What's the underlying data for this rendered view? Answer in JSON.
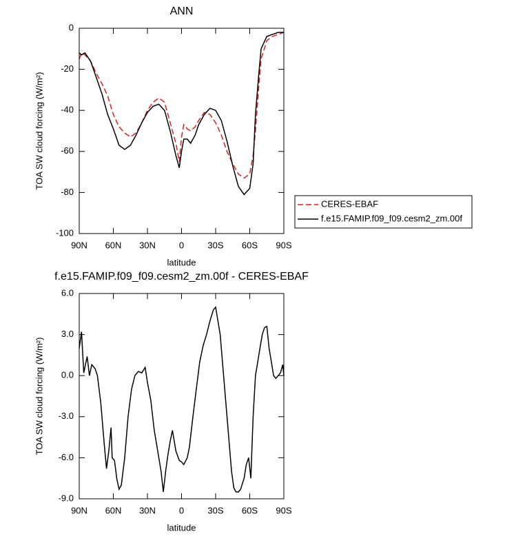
{
  "chart_data": [
    {
      "type": "line",
      "title": "ANN",
      "xlabel": "latitude",
      "ylabel": "TOA SW cloud forcing (W/m²)",
      "x": [
        90,
        88,
        85,
        80,
        75,
        70,
        65,
        60,
        55,
        50,
        45,
        40,
        35,
        30,
        25,
        20,
        15,
        10,
        5,
        2,
        0,
        -2,
        -5,
        -8,
        -12,
        -15,
        -20,
        -25,
        -30,
        -35,
        -40,
        -45,
        -50,
        -55,
        -60,
        -63,
        -65,
        -68,
        -70,
        -75,
        -80,
        -85,
        -90
      ],
      "series": [
        {
          "name": "CERES-EBAF",
          "color": "#e41a1c",
          "dash": true,
          "values": [
            -15,
            -12,
            -13,
            -16,
            -22,
            -27,
            -33,
            -42,
            -48,
            -51,
            -53,
            -51,
            -46,
            -40,
            -36,
            -34,
            -36,
            -46,
            -56,
            -65,
            -53,
            -47,
            -49,
            -50,
            -48,
            -45,
            -41,
            -42,
            -46,
            -52,
            -60,
            -66,
            -71,
            -73,
            -71,
            -62,
            -50,
            -28,
            -15,
            -6,
            -4,
            -3,
            -2
          ]
        },
        {
          "name": "f.e15.FAMIP.f09_f09.cesm2_zm.00f",
          "color": "#000000",
          "dash": false,
          "values": [
            -12,
            -13,
            -12,
            -16,
            -24,
            -32,
            -42,
            -49,
            -57,
            -59,
            -57,
            -52,
            -46,
            -41,
            -38,
            -37,
            -40,
            -50,
            -62,
            -68,
            -60,
            -54,
            -54,
            -56,
            -52,
            -47,
            -42,
            -39,
            -40,
            -45,
            -55,
            -67,
            -77,
            -81,
            -78,
            -66,
            -42,
            -22,
            -10,
            -4,
            -3,
            -2,
            -2
          ]
        }
      ],
      "xlim": [
        90,
        -90
      ],
      "xticks": [
        {
          "value": 90,
          "label": "90N"
        },
        {
          "value": 60,
          "label": "60N"
        },
        {
          "value": 30,
          "label": "30N"
        },
        0,
        {
          "value": -30,
          "label": "30S"
        },
        {
          "value": -60,
          "label": "60S"
        },
        {
          "value": -90,
          "label": "90S"
        }
      ],
      "ylim": [
        -100,
        0
      ],
      "yticks": [
        -100,
        -80,
        -60,
        -40,
        -20,
        0
      ],
      "legend": "outside-right"
    },
    {
      "type": "line",
      "title": "f.e15.FAMIP.f09_f09.cesm2_zm.00f - CERES-EBAF",
      "xlabel": "latitude",
      "ylabel": "TOA SW cloud forcing (W/m²)",
      "x": [
        90,
        88,
        86,
        83,
        81,
        79,
        76,
        74,
        71,
        68,
        66,
        64,
        62,
        61,
        59,
        57,
        55,
        53,
        50,
        47,
        44,
        41,
        38,
        35,
        32,
        30,
        27,
        24,
        21,
        18,
        16,
        14,
        12,
        10,
        8,
        5,
        2,
        0,
        -2,
        -5,
        -7,
        -10,
        -13,
        -16,
        -19,
        -22,
        -25,
        -28,
        -30,
        -32,
        -34,
        -36,
        -38,
        -40,
        -42,
        -44,
        -46,
        -48,
        -50,
        -52,
        -55,
        -57,
        -59,
        -61,
        -63,
        -65,
        -67,
        -69,
        -71,
        -73,
        -75,
        -77,
        -79,
        -81,
        -83,
        -85,
        -87,
        -89,
        -90
      ],
      "series": [
        {
          "color": "#000000",
          "values": [
            2.0,
            3.2,
            0.2,
            1.4,
            0.0,
            0.8,
            0.5,
            0.0,
            -2.0,
            -5.0,
            -6.8,
            -5.5,
            -3.8,
            -6.0,
            -6.2,
            -7.5,
            -8.3,
            -8.0,
            -6.0,
            -3.0,
            -1.0,
            0.0,
            0.3,
            0.2,
            0.6,
            -0.5,
            -1.8,
            -4.0,
            -5.5,
            -7.0,
            -8.5,
            -7.0,
            -5.8,
            -4.8,
            -4.0,
            -5.5,
            -6.2,
            -6.3,
            -6.5,
            -6.0,
            -5.2,
            -3.0,
            -1.0,
            1.0,
            2.2,
            3.0,
            4.0,
            4.8,
            5.0,
            4.0,
            3.0,
            1.0,
            -1.0,
            -3.0,
            -5.0,
            -7.0,
            -8.2,
            -8.5,
            -8.5,
            -8.3,
            -7.5,
            -6.5,
            -6.0,
            -7.5,
            -3.0,
            0.0,
            1.0,
            2.0,
            3.0,
            3.5,
            3.6,
            2.0,
            1.0,
            0.0,
            -0.2,
            0.0,
            0.2,
            0.8,
            0.0
          ]
        }
      ],
      "xlim": [
        90,
        -90
      ],
      "xticks": [
        {
          "value": 90,
          "label": "90N"
        },
        {
          "value": 60,
          "label": "60N"
        },
        {
          "value": 30,
          "label": "30N"
        },
        0,
        {
          "value": -30,
          "label": "30S"
        },
        {
          "value": -60,
          "label": "60S"
        },
        {
          "value": -90,
          "label": "90S"
        }
      ],
      "ylim": [
        -9,
        6
      ],
      "yticks": [
        {
          "value": -9,
          "label": "-9.0"
        },
        {
          "value": -6,
          "label": "-6.0"
        },
        {
          "value": -3,
          "label": "-3.0"
        },
        {
          "value": 0,
          "label": "0.0"
        },
        {
          "value": 3,
          "label": "3.0"
        },
        {
          "value": 6,
          "label": "6.0"
        }
      ]
    }
  ]
}
